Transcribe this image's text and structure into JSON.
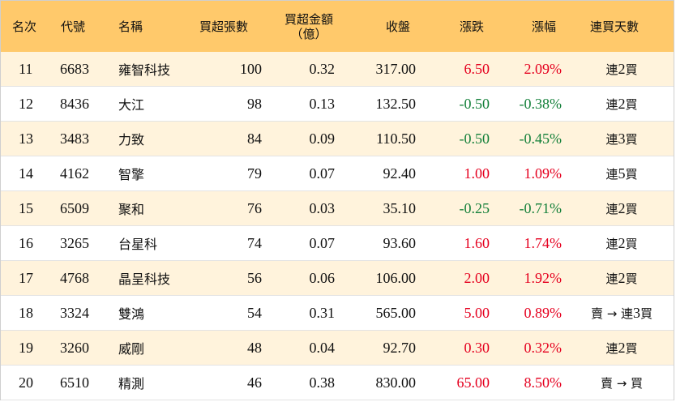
{
  "headers": {
    "rank": "名次",
    "code": "代號",
    "name": "名稱",
    "net_buy_lots": "買超張數",
    "net_buy_amount_line1": "買超金額",
    "net_buy_amount_line2": "（億）",
    "close": "收盤",
    "change": "漲跌",
    "change_pct": "漲幅",
    "streak": "連買天數"
  },
  "rows": [
    {
      "rank": "11",
      "code": "6683",
      "name": "雍智科技",
      "lots": "100",
      "amount": "0.32",
      "close": "317.00",
      "change": "6.50",
      "pct": "2.09%",
      "direction": "up",
      "streak": "連 2 買"
    },
    {
      "rank": "12",
      "code": "8436",
      "name": "大江",
      "lots": "98",
      "amount": "0.13",
      "close": "132.50",
      "change": "-0.50",
      "pct": "-0.38%",
      "direction": "down",
      "streak": "連 2 買"
    },
    {
      "rank": "13",
      "code": "3483",
      "name": "力致",
      "lots": "84",
      "amount": "0.09",
      "close": "110.50",
      "change": "-0.50",
      "pct": "-0.45%",
      "direction": "down",
      "streak": "連 3 買"
    },
    {
      "rank": "14",
      "code": "4162",
      "name": "智擎",
      "lots": "79",
      "amount": "0.07",
      "close": "92.40",
      "change": "1.00",
      "pct": "1.09%",
      "direction": "up",
      "streak": "連 5 買"
    },
    {
      "rank": "15",
      "code": "6509",
      "name": "聚和",
      "lots": "76",
      "amount": "0.03",
      "close": "35.10",
      "change": "-0.25",
      "pct": "-0.71%",
      "direction": "down",
      "streak": "連 2 買"
    },
    {
      "rank": "16",
      "code": "3265",
      "name": "台星科",
      "lots": "74",
      "amount": "0.07",
      "close": "93.60",
      "change": "1.60",
      "pct": "1.74%",
      "direction": "up",
      "streak": "連 2 買"
    },
    {
      "rank": "17",
      "code": "4768",
      "name": "晶呈科技",
      "lots": "56",
      "amount": "0.06",
      "close": "106.00",
      "change": "2.00",
      "pct": "1.92%",
      "direction": "up",
      "streak": "連 2 買"
    },
    {
      "rank": "18",
      "code": "3324",
      "name": "雙鴻",
      "lots": "54",
      "amount": "0.31",
      "close": "565.00",
      "change": "5.00",
      "pct": "0.89%",
      "direction": "up",
      "streak": "賣 → 連 3 買"
    },
    {
      "rank": "19",
      "code": "3260",
      "name": "威剛",
      "lots": "48",
      "amount": "0.04",
      "close": "92.70",
      "change": "0.30",
      "pct": "0.32%",
      "direction": "up",
      "streak": "連 2 買"
    },
    {
      "rank": "20",
      "code": "6510",
      "name": "精測",
      "lots": "46",
      "amount": "0.38",
      "close": "830.00",
      "change": "65.00",
      "pct": "8.50%",
      "direction": "up",
      "streak": "賣 → 買"
    }
  ],
  "colors": {
    "header_bg": "#ffc96b",
    "odd_row_bg": "#fff3dc",
    "up": "#e5001f",
    "down": "#14803a"
  }
}
